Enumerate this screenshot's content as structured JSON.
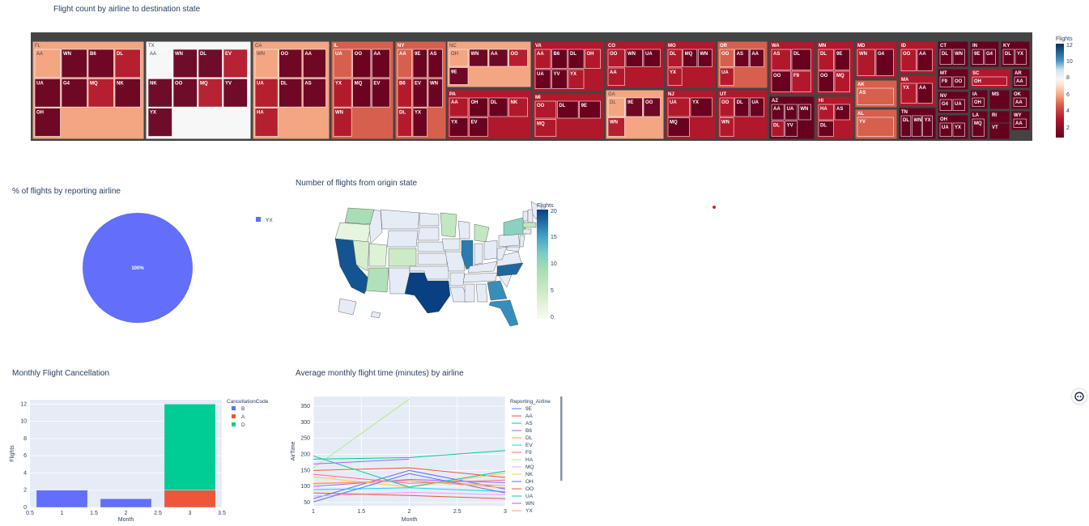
{
  "titles": {
    "treemap": "Flight count by airline to destination state",
    "pie": "% of flights by reporting airline",
    "map": "Number of flights from origin state",
    "bar": "Monthly Flight Cancellation",
    "line": "Average monthly flight time (minutes) by airline"
  },
  "colorbars": {
    "treemap": {
      "title": "Flights",
      "ticks": [
        "12",
        "10",
        "8",
        "6",
        "4",
        "2"
      ]
    },
    "map": {
      "title": "Flights",
      "ticks": [
        "20",
        "15",
        "10",
        "5",
        "0"
      ]
    }
  },
  "chart_data": [
    {
      "type": "treemap",
      "title": "Flight count by airline to destination state",
      "colorscale": "RdBu",
      "states": [
        {
          "name": "FL",
          "airlines": [
            "AA",
            "WN",
            "B6",
            "DL",
            "UA",
            "G4",
            "MQ",
            "NK",
            "OH"
          ]
        },
        {
          "name": "TX",
          "airlines": [
            "AA",
            "WN",
            "DL",
            "EV",
            "NK",
            "OO",
            "MQ",
            "YV",
            "YX"
          ]
        },
        {
          "name": "CA",
          "airlines": [
            "WN",
            "OO",
            "AA",
            "UA",
            "DL",
            "AS",
            "HA"
          ]
        },
        {
          "name": "IL",
          "airlines": [
            "UA",
            "OO",
            "AA",
            "YX",
            "MQ",
            "EV",
            "WN"
          ]
        },
        {
          "name": "NY",
          "airlines": [
            "AA",
            "9E",
            "AS",
            "B6",
            "EV",
            "WN",
            "DL",
            "YX"
          ]
        },
        {
          "name": "NC",
          "airlines": [
            "OH",
            "WN",
            "AA",
            "OO",
            "9E"
          ]
        },
        {
          "name": "PA",
          "airlines": [
            "AA",
            "OH",
            "DL",
            "NK",
            "YX",
            "EV"
          ]
        },
        {
          "name": "VA",
          "airlines": [
            "AA",
            "B6",
            "DL",
            "OH",
            "UA",
            "YV",
            "YX"
          ]
        },
        {
          "name": "MI",
          "airlines": [
            "OO",
            "DL",
            "9E",
            "MQ"
          ]
        },
        {
          "name": "CO",
          "airlines": [
            "OO",
            "WN",
            "UA",
            "AA"
          ]
        },
        {
          "name": "GA",
          "airlines": [
            "DL",
            "9E",
            "OO",
            "WN"
          ]
        },
        {
          "name": "MO",
          "airlines": [
            "DL",
            "MQ",
            "WN",
            "YX"
          ]
        },
        {
          "name": "NJ",
          "airlines": [
            "UA",
            "YX",
            "MQ"
          ]
        },
        {
          "name": "OR",
          "airlines": [
            "OO",
            "AS",
            "AA",
            "UA"
          ]
        },
        {
          "name": "UT",
          "airlines": [
            "OO",
            "DL",
            "UA",
            "WN"
          ]
        },
        {
          "name": "WA",
          "airlines": [
            "AS",
            "DL",
            "OO",
            "F9"
          ]
        },
        {
          "name": "AZ",
          "airlines": [
            "AA",
            "UA",
            "WN",
            "DL",
            "YV"
          ]
        },
        {
          "name": "MN",
          "airlines": [
            "DL",
            "9E",
            "OO",
            "MQ"
          ]
        },
        {
          "name": "HI",
          "airlines": [
            "HA",
            "AS",
            "DL"
          ]
        },
        {
          "name": "MD",
          "airlines": [
            "WN",
            "G4"
          ]
        },
        {
          "name": "AK",
          "airlines": [
            "AS"
          ]
        },
        {
          "name": "AL",
          "airlines": [
            "YV"
          ]
        },
        {
          "name": "ID",
          "airlines": [
            "OO",
            "AA"
          ]
        },
        {
          "name": "MA",
          "airlines": [
            "YX",
            "AA"
          ]
        },
        {
          "name": "TN",
          "airlines": [
            "DL",
            "WN",
            "YX"
          ]
        },
        {
          "name": "CT",
          "airlines": [
            "DL",
            "WN"
          ]
        },
        {
          "name": "MT",
          "airlines": [
            "F9",
            "OO"
          ]
        },
        {
          "name": "NV",
          "airlines": [
            "G4",
            "UA"
          ]
        },
        {
          "name": "OH",
          "airlines": [
            "UA",
            "YX"
          ]
        },
        {
          "name": "IN",
          "airlines": [
            "9E",
            "G4"
          ]
        },
        {
          "name": "SC",
          "airlines": [
            "OH"
          ]
        },
        {
          "name": "IA",
          "airlines": [
            "OH"
          ]
        },
        {
          "name": "LA",
          "airlines": [
            "MQ"
          ]
        },
        {
          "name": "KY",
          "airlines": [
            "DL",
            "YX"
          ]
        },
        {
          "name": "AR",
          "airlines": [
            "AA"
          ]
        },
        {
          "name": "MS",
          "airlines": []
        },
        {
          "name": "OK",
          "airlines": [
            "AA"
          ]
        },
        {
          "name": "RI",
          "airlines": []
        },
        {
          "name": "WY",
          "airlines": [
            "AA"
          ]
        },
        {
          "name": "VT",
          "airlines": []
        }
      ]
    },
    {
      "type": "pie",
      "title": "% of flights by reporting airline",
      "labels": [
        "YX"
      ],
      "values": [
        100
      ],
      "text": "100%",
      "colors": [
        "#636efa"
      ]
    },
    {
      "type": "choropleth",
      "title": "Number of flights from origin state",
      "colorscale": "GnBu",
      "range": [
        0,
        20
      ],
      "values": {
        "CA": 19,
        "TX": 20,
        "IL": 17,
        "FL": 16,
        "NC": 18,
        "GA": 16,
        "WA": 9,
        "AZ": 8,
        "NY": 11,
        "MI": 6,
        "CO": 5,
        "MN": 6,
        "NV": 4,
        "UT": 3,
        "OR": 2,
        "MA": 6
      }
    },
    {
      "type": "bar",
      "title": "Monthly Flight Cancellation",
      "xlabel": "Month",
      "ylabel": "Flights",
      "xlim": [
        0.5,
        3.5
      ],
      "ylim": [
        0,
        12.5
      ],
      "xticks": [
        "0.5",
        "1",
        "1.5",
        "2",
        "2.5",
        "3",
        "3.5"
      ],
      "yticks": [
        "0",
        "2",
        "4",
        "6",
        "8",
        "10",
        "12"
      ],
      "legend_title": "CancellationCode",
      "series": [
        {
          "name": "B",
          "color": "#636efa",
          "x": [
            1,
            2
          ],
          "values": [
            2,
            1
          ]
        },
        {
          "name": "A",
          "color": "#ef553b",
          "x": [
            3
          ],
          "values": [
            2
          ]
        },
        {
          "name": "D",
          "color": "#00cc96",
          "x": [
            3
          ],
          "values": [
            10
          ]
        }
      ]
    },
    {
      "type": "line",
      "title": "Average monthly flight time (minutes) by airline",
      "xlabel": "Month",
      "ylabel": "AirTime",
      "xlim": [
        1,
        3
      ],
      "ylim": [
        40,
        380
      ],
      "xticks": [
        "1",
        "1.5",
        "2",
        "2.5",
        "3"
      ],
      "yticks": [
        "50",
        "100",
        "150",
        "200",
        "250",
        "300",
        "350"
      ],
      "legend_title": "Reporting_Airline",
      "series": [
        {
          "name": "9E",
          "color": "#636efa",
          "x": [
            1,
            2,
            3
          ],
          "values": [
            62,
            150,
            92
          ]
        },
        {
          "name": "AA",
          "color": "#ef553b",
          "x": [
            1,
            2,
            3
          ],
          "values": [
            150,
            158,
            128
          ]
        },
        {
          "name": "AS",
          "color": "#00cc96",
          "x": [
            1,
            2,
            3
          ],
          "values": [
            185,
            190,
            212
          ]
        },
        {
          "name": "B6",
          "color": "#ab63fa",
          "x": [
            1,
            2,
            3
          ],
          "values": [
            100,
            122,
            112
          ]
        },
        {
          "name": "DL",
          "color": "#ffa15a",
          "x": [
            1,
            2,
            3
          ],
          "values": [
            108,
            118,
            102
          ]
        },
        {
          "name": "EV",
          "color": "#19d3f3",
          "x": [
            1,
            2,
            3
          ],
          "values": [
            90,
            96,
            84
          ]
        },
        {
          "name": "F9",
          "color": "#ff6692",
          "x": [
            1,
            2,
            3
          ],
          "values": [
            138,
            110,
            120
          ]
        },
        {
          "name": "HA",
          "color": "#b6e880",
          "x": [
            1,
            2
          ],
          "values": [
            158,
            372
          ]
        },
        {
          "name": "MQ",
          "color": "#ff97ff",
          "x": [
            1,
            2,
            3
          ],
          "values": [
            70,
            82,
            74
          ]
        },
        {
          "name": "NK",
          "color": "#fecb52",
          "x": [
            1,
            2,
            3
          ],
          "values": [
            130,
            98,
            142
          ]
        },
        {
          "name": "OH",
          "color": "#636efa",
          "x": [
            1,
            2,
            3
          ],
          "values": [
            52,
            140,
            80
          ]
        },
        {
          "name": "OO",
          "color": "#ef553b",
          "x": [
            1,
            2,
            3
          ],
          "values": [
            80,
            72,
            62
          ]
        },
        {
          "name": "UA",
          "color": "#00cc96",
          "x": [
            1,
            2,
            3
          ],
          "values": [
            195,
            98,
            148
          ]
        },
        {
          "name": "WN",
          "color": "#ab63fa",
          "x": [
            1,
            2
          ],
          "values": [
            170,
            185
          ]
        },
        {
          "name": "YX",
          "color": "#ffa15a",
          "x": [
            1,
            2,
            3
          ],
          "values": [
            110,
            118,
            96
          ]
        }
      ]
    }
  ]
}
